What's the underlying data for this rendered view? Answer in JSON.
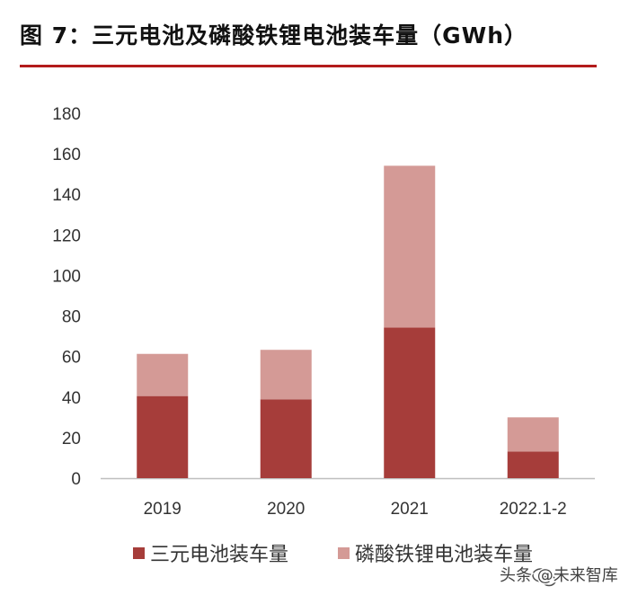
{
  "title": "图 7：三元电池及磷酸铁锂电池装车量（GWh）",
  "colors": {
    "title_rule": "#b31b1b",
    "series_ternary": "#a63d3a",
    "series_lfp": "#d49a96",
    "axis": "#bfbfbf"
  },
  "chart_data": {
    "type": "bar",
    "stacked": true,
    "title": "图 7：三元电池及磷酸铁锂电池装车量（GWh）",
    "categories": [
      "2019",
      "2020",
      "2021",
      "2022.1-2"
    ],
    "series": [
      {
        "name": "三元电池装车量",
        "values": [
          40.5,
          38.9,
          74.3,
          13.1
        ]
      },
      {
        "name": "磷酸铁锂电池装车量",
        "values": [
          20.8,
          24.4,
          79.8,
          16.9
        ]
      }
    ],
    "ylim": [
      0,
      180
    ],
    "yticks": [
      0,
      20,
      40,
      60,
      80,
      100,
      120,
      140,
      160,
      180
    ],
    "grid": false,
    "legend_position": "bottom"
  },
  "watermark": {
    "text": "头条 @未来智库",
    "icon": "wechat-icon"
  }
}
